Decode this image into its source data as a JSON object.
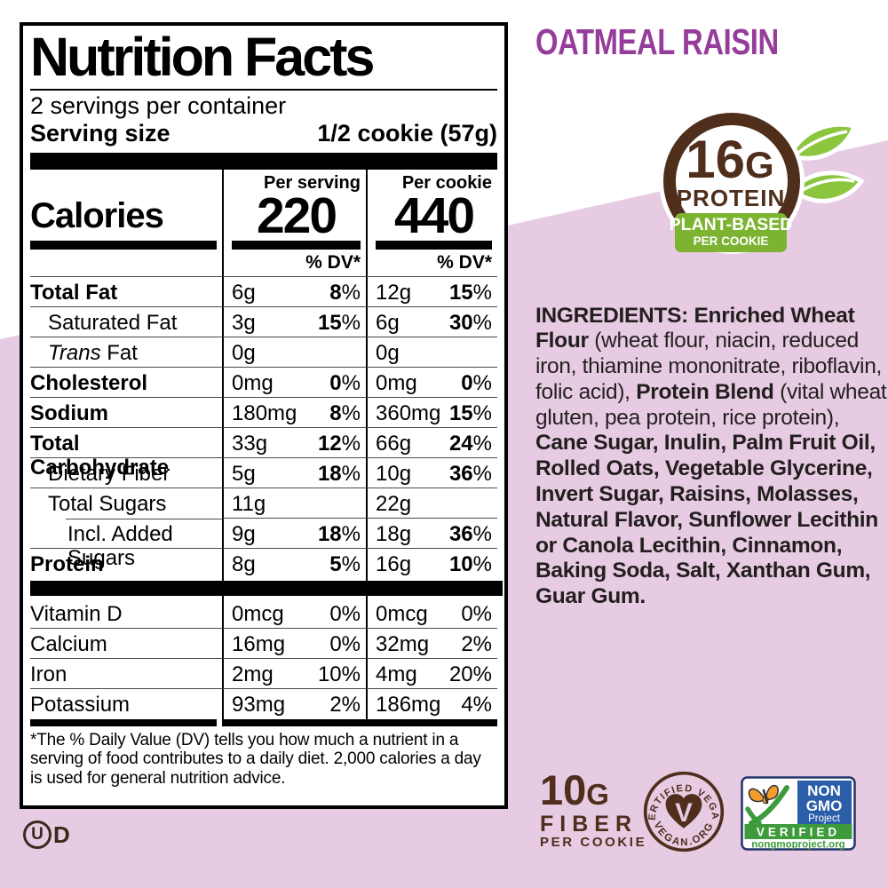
{
  "colors": {
    "pink": "#e6cbe2",
    "purple": "#963c9b",
    "brown": "#4f2e1c",
    "leaf_green": "#8cc63f",
    "band_green": "#7cb432",
    "nongmo_blue": "#2b5ea8",
    "nongmo_green": "#3e9b3c",
    "butterfly_orange": "#f49c2e",
    "label_black": "#000000"
  },
  "flavor_title": "OATMEAL RAISIN",
  "protein_badge": {
    "grams": "16",
    "g_suffix": "G",
    "label": "PROTEIN",
    "band_line1": "PLANT-BASED",
    "band_line2": "PER COOKIE"
  },
  "nutrition": {
    "title": "Nutrition Facts",
    "servings_per_container": "2 servings per container",
    "serving_size_label": "Serving size",
    "serving_size_value": "1/2 cookie (57g)",
    "calories_label": "Calories",
    "col1_header": "Per serving",
    "col2_header": "Per cookie",
    "calories_per_serving": "220",
    "calories_per_cookie": "440",
    "dv_header": "% DV*",
    "rows": [
      {
        "name": "Total Fat",
        "bold": true,
        "indent": 0,
        "a1": "6g",
        "d1": "8%",
        "a2": "12g",
        "d2": "15%"
      },
      {
        "name": "Saturated Fat",
        "bold": false,
        "indent": 1,
        "a1": "3g",
        "d1": "15%",
        "a2": "6g",
        "d2": "30%"
      },
      {
        "name": "Fat",
        "italic_prefix": "Trans",
        "bold": false,
        "indent": 1,
        "a1": "0g",
        "d1": "",
        "a2": "0g",
        "d2": ""
      },
      {
        "name": "Cholesterol",
        "bold": true,
        "indent": 0,
        "a1": "0mg",
        "d1": "0%",
        "a2": "0mg",
        "d2": "0%"
      },
      {
        "name": "Sodium",
        "bold": true,
        "indent": 0,
        "a1": "180mg",
        "d1": "8%",
        "a2": "360mg",
        "d2": "15%"
      },
      {
        "name": "Total Carbohydrate",
        "bold": true,
        "indent": 0,
        "a1": "33g",
        "d1": "12%",
        "a2": "66g",
        "d2": "24%"
      },
      {
        "name": "Dietary Fiber",
        "bold": false,
        "indent": 1,
        "a1": "5g",
        "d1": "18%",
        "a2": "10g",
        "d2": "36%"
      },
      {
        "name": "Total Sugars",
        "bold": false,
        "indent": 1,
        "a1": "11g",
        "d1": "",
        "a2": "22g",
        "d2": "",
        "inset_line": true
      },
      {
        "name": "Incl. Added Sugars",
        "bold": false,
        "indent": 2,
        "a1": "9g",
        "d1": "18%",
        "a2": "18g",
        "d2": "36%"
      },
      {
        "name": "Protein",
        "bold": true,
        "indent": 0,
        "a1": "8g",
        "d1": "5%",
        "a2": "16g",
        "d2": "10%",
        "no_line": true
      }
    ],
    "vitamins": [
      {
        "name": "Vitamin D",
        "a1": "0mcg",
        "d1": "0%",
        "a2": "0mcg",
        "d2": "0%"
      },
      {
        "name": "Calcium",
        "a1": "16mg",
        "d1": "0%",
        "a2": "32mg",
        "d2": "2%"
      },
      {
        "name": "Iron",
        "a1": "2mg",
        "d1": "10%",
        "a2": "4mg",
        "d2": "20%"
      },
      {
        "name": "Potassium",
        "a1": "93mg",
        "d1": "2%",
        "a2": "186mg",
        "d2": "4%",
        "no_line": true
      }
    ],
    "footnote": "*The % Daily Value (DV) tells you how much a nutrient in a serving of food contributes to a daily diet. 2,000 calories a day is used for general nutrition advice."
  },
  "kosher": {
    "circle_letter": "U",
    "suffix": "D"
  },
  "ingredients": {
    "segments": [
      {
        "text": "INGREDIENTS: Enriched Wheat Flour",
        "bold": true
      },
      {
        "text": " (wheat flour, niacin, reduced iron, thiamine mononitrate, riboflavin, folic acid), ",
        "bold": false
      },
      {
        "text": "Protein Blend",
        "bold": true
      },
      {
        "text": " (vital wheat gluten, pea protein, rice protein), ",
        "bold": false
      },
      {
        "text": "Cane Sugar, Inulin, Palm Fruit Oil, Rolled Oats, Vegetable Glycerine, Invert Sugar, Raisins, Molasses, Natural Flavor, Sunflower Lecithin or Canola Lecithin, Cinnamon, Baking Soda, Salt, Xanthan Gum, Guar Gum.",
        "bold": true
      }
    ]
  },
  "fiber_badge": {
    "grams": "10",
    "g_suffix": "G",
    "line1": "FIBER",
    "line2": "PER COOKIE"
  },
  "vegan_badge": {
    "arc_top": "CERTIFIED VEGAN",
    "arc_bottom": "VEGAN.ORG",
    "letter": "V"
  },
  "nongmo_badge": {
    "word1": "NON",
    "word2": "GMO",
    "word3": "Project",
    "verified": "VERIFIED",
    "url": "nongmoproject.org"
  }
}
